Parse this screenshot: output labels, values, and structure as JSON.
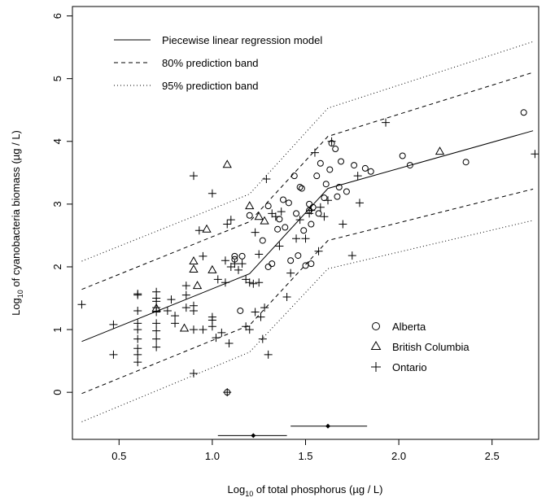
{
  "chart_data": {
    "type": "scatter",
    "title": "",
    "xlabel": {
      "pre": "Log",
      "sub": "10",
      "post": " of total phosphorus (µg / L)"
    },
    "ylabel": {
      "pre": "Log",
      "sub": "10",
      "post": " of cyanobacteria biomass (µg / L)"
    },
    "xlim": [
      0.25,
      2.75
    ],
    "ylim": [
      -0.75,
      6.15
    ],
    "xticks": [
      0.5,
      1.0,
      1.5,
      2.0,
      2.5
    ],
    "xtick_labels": [
      "0.5",
      "1.0",
      "1.5",
      "2.0",
      "2.5"
    ],
    "yticks": [
      0,
      1,
      2,
      3,
      4,
      5,
      6
    ],
    "ytick_labels": [
      "0",
      "1",
      "2",
      "3",
      "4",
      "5",
      "6"
    ],
    "grid": false,
    "lines": [
      {
        "name": "Piecewise linear regression model",
        "style": "solid",
        "points": [
          [
            0.3,
            0.81
          ],
          [
            1.2,
            1.89
          ],
          [
            1.62,
            3.25
          ],
          [
            2.72,
            4.17
          ]
        ]
      },
      {
        "name": "80% prediction band",
        "style": "dashed",
        "points": [
          [
            0.3,
            1.64
          ],
          [
            1.2,
            2.72
          ],
          [
            1.62,
            4.08
          ],
          [
            2.72,
            5.1
          ]
        ]
      },
      {
        "name": "80% prediction band",
        "style": "dashed",
        "points": [
          [
            0.3,
            -0.02
          ],
          [
            1.2,
            1.07
          ],
          [
            1.62,
            2.42
          ],
          [
            2.72,
            3.24
          ]
        ]
      },
      {
        "name": "95% prediction band",
        "style": "dotted",
        "points": [
          [
            0.3,
            2.09
          ],
          [
            1.2,
            3.16
          ],
          [
            1.62,
            4.53
          ],
          [
            2.72,
            5.59
          ]
        ]
      },
      {
        "name": "95% prediction band",
        "style": "dotted",
        "points": [
          [
            0.3,
            -0.47
          ],
          [
            1.2,
            0.64
          ],
          [
            1.62,
            1.97
          ],
          [
            2.72,
            2.74
          ]
        ]
      }
    ],
    "legend_lines": [
      {
        "label": "Piecewise linear regression model",
        "style": "solid"
      },
      {
        "label": "80% prediction band",
        "style": "dashed"
      },
      {
        "label": "95% prediction band",
        "style": "dotted"
      }
    ],
    "legend_points": [
      {
        "label": "Alberta",
        "marker": "circle"
      },
      {
        "label": "British Columbia",
        "marker": "triangle"
      },
      {
        "label": "Ontario",
        "marker": "plus"
      }
    ],
    "breakpoint_intervals": [
      {
        "center": 1.22,
        "low": 1.03,
        "high": 1.4,
        "y": -0.69
      },
      {
        "center": 1.62,
        "low": 1.42,
        "high": 1.83,
        "y": -0.54
      }
    ],
    "series": [
      {
        "name": "Alberta",
        "marker": "circle",
        "points": [
          [
            1.08,
            0.0
          ],
          [
            1.12,
            2.12
          ],
          [
            1.12,
            2.17
          ],
          [
            1.16,
            2.17
          ],
          [
            1.15,
            1.3
          ],
          [
            1.2,
            2.82
          ],
          [
            1.27,
            2.42
          ],
          [
            1.3,
            2.0
          ],
          [
            1.3,
            2.97
          ],
          [
            1.32,
            2.05
          ],
          [
            1.35,
            2.6
          ],
          [
            1.36,
            2.76
          ],
          [
            1.38,
            3.07
          ],
          [
            1.39,
            2.63
          ],
          [
            1.41,
            3.02
          ],
          [
            1.42,
            2.1
          ],
          [
            1.44,
            3.45
          ],
          [
            1.45,
            2.85
          ],
          [
            1.46,
            2.18
          ],
          [
            1.47,
            3.27
          ],
          [
            1.48,
            3.25
          ],
          [
            1.49,
            2.58
          ],
          [
            1.5,
            2.02
          ],
          [
            1.52,
            2.9
          ],
          [
            1.52,
            3.0
          ],
          [
            1.53,
            2.68
          ],
          [
            1.53,
            2.05
          ],
          [
            1.54,
            2.95
          ],
          [
            1.56,
            3.45
          ],
          [
            1.57,
            2.85
          ],
          [
            1.58,
            3.65
          ],
          [
            1.6,
            3.1
          ],
          [
            1.61,
            3.32
          ],
          [
            1.63,
            3.55
          ],
          [
            1.64,
            3.97
          ],
          [
            1.66,
            3.88
          ],
          [
            1.67,
            3.12
          ],
          [
            1.68,
            3.27
          ],
          [
            1.69,
            3.68
          ],
          [
            1.72,
            3.2
          ],
          [
            1.76,
            3.62
          ],
          [
            1.82,
            3.57
          ],
          [
            1.85,
            3.52
          ],
          [
            2.02,
            3.77
          ],
          [
            2.06,
            3.62
          ],
          [
            2.36,
            3.67
          ],
          [
            2.67,
            4.46
          ]
        ]
      },
      {
        "name": "British Columbia",
        "marker": "triangle",
        "points": [
          [
            0.7,
            1.34
          ],
          [
            0.85,
            1.02
          ],
          [
            0.9,
            2.09
          ],
          [
            0.9,
            1.96
          ],
          [
            0.92,
            1.7
          ],
          [
            0.97,
            2.6
          ],
          [
            1.0,
            1.95
          ],
          [
            1.08,
            3.63
          ],
          [
            1.2,
            2.97
          ],
          [
            1.25,
            2.8
          ],
          [
            1.28,
            2.73
          ],
          [
            2.22,
            3.84
          ]
        ]
      },
      {
        "name": "Ontario",
        "marker": "plus",
        "points": [
          [
            0.3,
            1.4
          ],
          [
            0.47,
            1.08
          ],
          [
            0.47,
            0.6
          ],
          [
            0.6,
            1.55
          ],
          [
            0.6,
            1.57
          ],
          [
            0.6,
            1.3
          ],
          [
            0.6,
            1.1
          ],
          [
            0.6,
            1.0
          ],
          [
            0.6,
            0.85
          ],
          [
            0.6,
            0.7
          ],
          [
            0.6,
            0.6
          ],
          [
            0.6,
            0.48
          ],
          [
            0.7,
            1.6
          ],
          [
            0.7,
            1.5
          ],
          [
            0.7,
            1.45
          ],
          [
            0.7,
            1.35
          ],
          [
            0.7,
            1.28
          ],
          [
            0.7,
            1.1
          ],
          [
            0.7,
            0.98
          ],
          [
            0.7,
            0.85
          ],
          [
            0.7,
            0.72
          ],
          [
            0.76,
            1.3
          ],
          [
            0.78,
            1.48
          ],
          [
            0.8,
            1.22
          ],
          [
            0.8,
            1.1
          ],
          [
            0.86,
            1.7
          ],
          [
            0.86,
            1.55
          ],
          [
            0.86,
            1.35
          ],
          [
            0.9,
            3.45
          ],
          [
            0.9,
            1.38
          ],
          [
            0.9,
            1.3
          ],
          [
            0.9,
            1.0
          ],
          [
            0.9,
            0.3
          ],
          [
            0.93,
            2.58
          ],
          [
            0.95,
            2.17
          ],
          [
            0.95,
            1.0
          ],
          [
            1.0,
            3.17
          ],
          [
            1.0,
            1.2
          ],
          [
            1.0,
            1.15
          ],
          [
            1.0,
            1.05
          ],
          [
            1.02,
            0.87
          ],
          [
            1.03,
            1.8
          ],
          [
            1.05,
            0.95
          ],
          [
            1.07,
            2.1
          ],
          [
            1.07,
            1.75
          ],
          [
            1.08,
            2.68
          ],
          [
            1.08,
            0.0
          ],
          [
            1.09,
            0.78
          ],
          [
            1.1,
            2.75
          ],
          [
            1.1,
            2.0
          ],
          [
            1.12,
            2.05
          ],
          [
            1.14,
            1.95
          ],
          [
            1.16,
            2.05
          ],
          [
            1.18,
            1.8
          ],
          [
            1.18,
            1.05
          ],
          [
            1.2,
            1.0
          ],
          [
            1.2,
            1.75
          ],
          [
            1.22,
            1.73
          ],
          [
            1.23,
            2.55
          ],
          [
            1.23,
            1.28
          ],
          [
            1.25,
            2.2
          ],
          [
            1.25,
            1.75
          ],
          [
            1.26,
            1.2
          ],
          [
            1.27,
            0.85
          ],
          [
            1.28,
            1.35
          ],
          [
            1.29,
            3.4
          ],
          [
            1.3,
            0.6
          ],
          [
            1.32,
            2.85
          ],
          [
            1.34,
            2.8
          ],
          [
            1.36,
            2.33
          ],
          [
            1.37,
            2.88
          ],
          [
            1.4,
            1.52
          ],
          [
            1.42,
            1.9
          ],
          [
            1.45,
            2.45
          ],
          [
            1.47,
            2.75
          ],
          [
            1.5,
            2.45
          ],
          [
            1.52,
            2.85
          ],
          [
            1.53,
            2.9
          ],
          [
            1.55,
            3.82
          ],
          [
            1.57,
            2.25
          ],
          [
            1.58,
            2.95
          ],
          [
            1.6,
            2.8
          ],
          [
            1.62,
            3.06
          ],
          [
            1.64,
            4.0
          ],
          [
            1.7,
            2.68
          ],
          [
            1.75,
            2.18
          ],
          [
            1.78,
            3.45
          ],
          [
            1.79,
            3.02
          ],
          [
            1.93,
            4.3
          ],
          [
            2.73,
            3.8
          ]
        ]
      }
    ]
  }
}
